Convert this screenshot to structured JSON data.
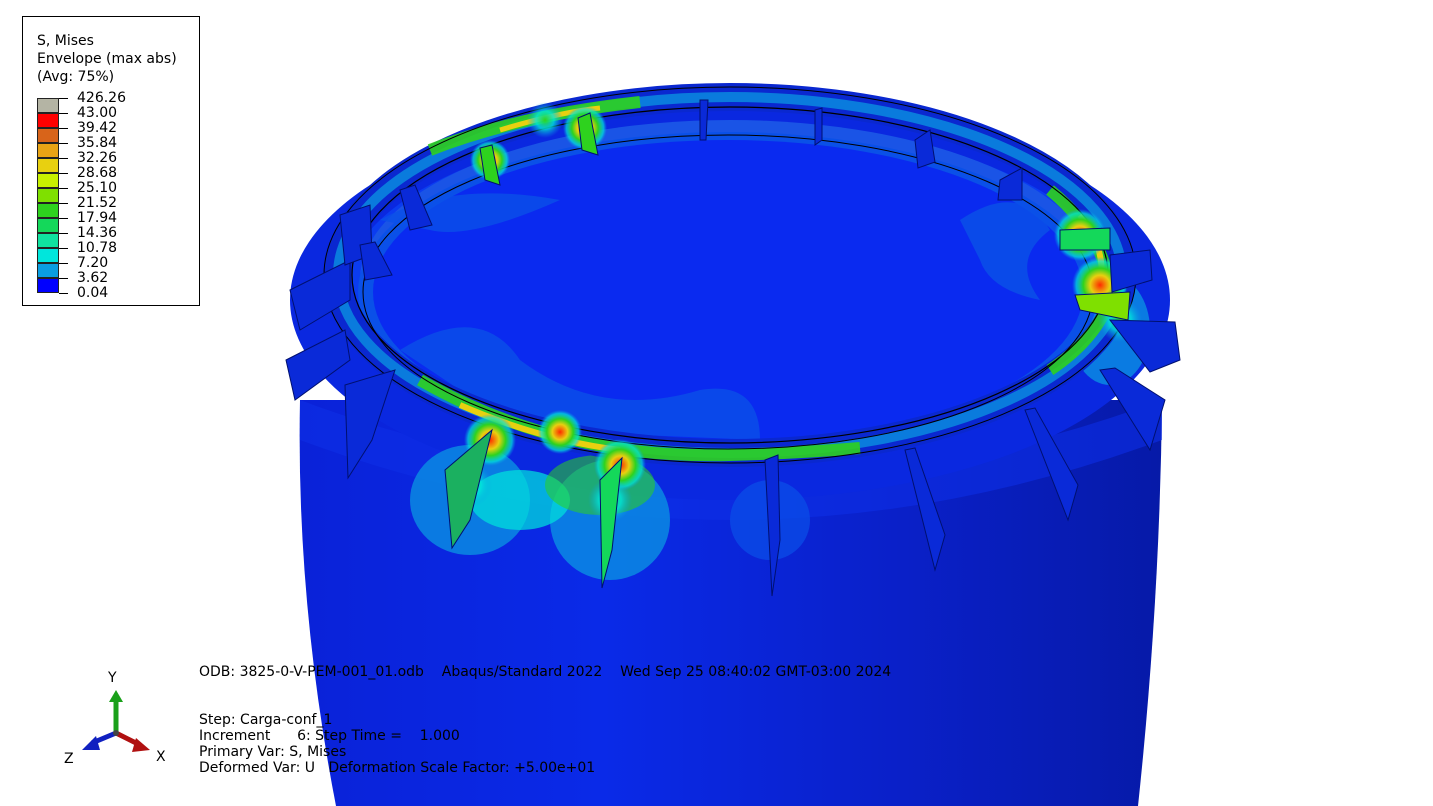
{
  "legend": {
    "title": "S, Mises",
    "subtitle": "Envelope (max abs)",
    "averaging": "(Avg: 75%)",
    "levels": [
      {
        "value": "426.26",
        "color": "#b4b4a4"
      },
      {
        "value": "43.00",
        "color": "#ff0000"
      },
      {
        "value": "39.42",
        "color": "#d8641a"
      },
      {
        "value": "35.84",
        "color": "#e9a415"
      },
      {
        "value": "32.26",
        "color": "#e8d010"
      },
      {
        "value": "28.68",
        "color": "#c8f000"
      },
      {
        "value": "25.10",
        "color": "#7fe000"
      },
      {
        "value": "21.52",
        "color": "#2ed21e"
      },
      {
        "value": "17.94",
        "color": "#14d85a"
      },
      {
        "value": "14.36",
        "color": "#10e2a0"
      },
      {
        "value": "10.78",
        "color": "#00e6dc"
      },
      {
        "value": "7.20",
        "color": "#0a9ee2"
      },
      {
        "value": "3.62",
        "color": "#0a50e8"
      },
      {
        "value": "0.04",
        "color": "#0000ff"
      }
    ]
  },
  "info": {
    "odb_line": "ODB: 3825-0-V-PEM-001_01.odb    Abaqus/Standard 2022    Wed Sep 25 08:40:02 GMT-03:00 2024",
    "step_line": "Step: Carga-conf_1",
    "increment_line": "Increment      6: Step Time =    1.000",
    "primary_var_line": "Primary Var: S, Mises",
    "deformed_var_line": "Deformed Var: U   Deformation Scale Factor: +5.00e+01"
  },
  "triad": {
    "y_label": "Y",
    "x_label": "X",
    "z_label": "Z"
  },
  "colors": {
    "mesh_dark": "#0018b4",
    "mesh_mid": "#0030ff",
    "background": "#ffffff"
  }
}
